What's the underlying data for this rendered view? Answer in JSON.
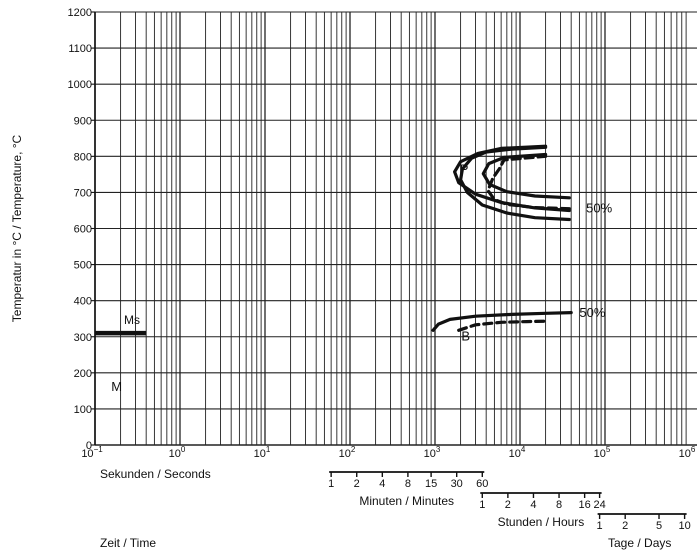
{
  "chart_data": {
    "type": "line",
    "title": "",
    "ylabel": "Temperatur in °C / Temperature, °C",
    "xlabel_primary": "Sekunden / Seconds",
    "xlabel_bottom": "Zeit / Time",
    "x_scale": "log",
    "xlim": [
      0.1,
      1000000
    ],
    "ylim": [
      0,
      1200
    ],
    "grid": true,
    "y_ticks": [
      "0",
      "100",
      "200",
      "300",
      "400",
      "500",
      "600",
      "700",
      "800",
      "900",
      "1000",
      "1100",
      "1200"
    ],
    "x_ticks": [
      {
        "value": 0.1,
        "base": "10",
        "exp": "−1"
      },
      {
        "value": 1,
        "base": "10",
        "exp": "0"
      },
      {
        "value": 10,
        "base": "10",
        "exp": "1"
      },
      {
        "value": 100,
        "base": "10",
        "exp": "2"
      },
      {
        "value": 1000,
        "base": "10",
        "exp": "3"
      },
      {
        "value": 10000,
        "base": "10",
        "exp": "4"
      },
      {
        "value": 100000,
        "base": "10",
        "exp": "5"
      },
      {
        "value": 1000000,
        "base": "10",
        "exp": "6"
      }
    ],
    "time_scales": [
      {
        "name": "minutes",
        "label": "Minuten / Minutes",
        "unit_seconds": 60,
        "ticks": [
          "1",
          "2",
          "4",
          "8",
          "15",
          "30",
          "60"
        ],
        "values": [
          1,
          2,
          4,
          8,
          15,
          30,
          60
        ]
      },
      {
        "name": "hours",
        "label": "Stunden / Hours",
        "unit_seconds": 3600,
        "ticks": [
          "1",
          "2",
          "4",
          "8",
          "16",
          "24"
        ],
        "values": [
          1,
          2,
          4,
          8,
          16,
          24
        ]
      },
      {
        "name": "days",
        "label": "Tage / Days",
        "unit_seconds": 86400,
        "ticks": [
          "1",
          "2",
          "5",
          "10"
        ],
        "values": [
          1,
          2,
          5,
          10
        ]
      }
    ],
    "ms_line": {
      "label": "Ms",
      "temperature": 310,
      "x_end": 0.4
    },
    "region_labels": [
      {
        "text": "P",
        "x": 2200,
        "y": 752
      },
      {
        "text": "B",
        "x": 2300,
        "y": 290
      },
      {
        "text": "M",
        "x": 0.18,
        "y": 150
      }
    ],
    "percent_labels": [
      {
        "text": "50%",
        "x": 60000,
        "y": 645
      },
      {
        "text": "50%",
        "x": 50000,
        "y": 355
      }
    ],
    "series": [
      {
        "name": "",
        "style": "solid",
        "points": [
          [
            20000,
            828
          ],
          [
            6000,
            822
          ],
          [
            3200,
            808
          ],
          [
            2000,
            785
          ],
          [
            1700,
            757
          ],
          [
            1900,
            727
          ],
          [
            3000,
            695
          ],
          [
            6000,
            672
          ],
          [
            15000,
            657
          ],
          [
            38000,
            650
          ]
        ]
      },
      {
        "name": "",
        "style": "solid",
        "points": [
          [
            38000,
            685
          ],
          [
            15000,
            690
          ],
          [
            7000,
            702
          ],
          [
            4400,
            722
          ],
          [
            3700,
            752
          ],
          [
            4300,
            780
          ],
          [
            6500,
            797
          ],
          [
            20000,
            805
          ]
        ]
      },
      {
        "name": "",
        "style": "solid",
        "points": [
          [
            38000,
            625
          ],
          [
            15000,
            630
          ],
          [
            7000,
            643
          ],
          [
            3600,
            665
          ],
          [
            2400,
            700
          ],
          [
            2000,
            735
          ],
          [
            2100,
            765
          ],
          [
            2700,
            795
          ],
          [
            4000,
            812
          ],
          [
            8000,
            820
          ],
          [
            20000,
            825
          ]
        ]
      },
      {
        "name": "",
        "style": "dashed",
        "points": [
          [
            38000,
            655
          ],
          [
            15000,
            658
          ],
          [
            7000,
            667
          ],
          [
            5000,
            680
          ],
          [
            4200,
            705
          ],
          [
            4800,
            740
          ],
          [
            5700,
            765
          ],
          [
            6500,
            790
          ],
          [
            20000,
            800
          ]
        ]
      },
      {
        "name": "",
        "style": "solid",
        "points": [
          [
            950,
            318
          ],
          [
            1100,
            335
          ],
          [
            1500,
            348
          ],
          [
            3000,
            357
          ],
          [
            8000,
            362
          ],
          [
            20000,
            365
          ],
          [
            40000,
            367
          ]
        ]
      },
      {
        "name": "",
        "style": "dashed",
        "points": [
          [
            1900,
            318
          ],
          [
            3000,
            333
          ],
          [
            6000,
            340
          ],
          [
            12000,
            342
          ],
          [
            20000,
            343
          ]
        ]
      }
    ]
  }
}
